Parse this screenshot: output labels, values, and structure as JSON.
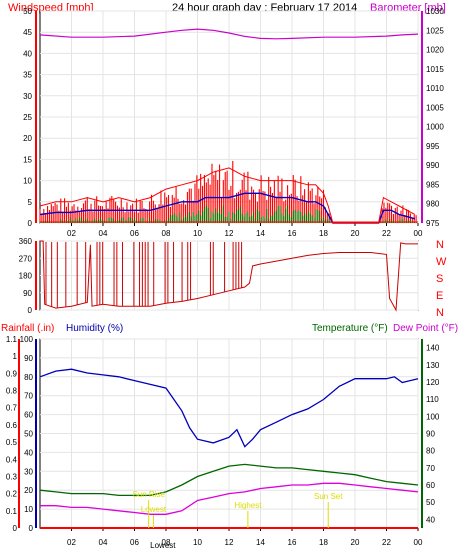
{
  "header": {
    "wind_label": "Windspeed [mph]",
    "title": "24 hour graph day : February 17 2014",
    "baro_label": "Barometer [mb]"
  },
  "labels": {
    "rain": "Rainfall (.in)",
    "humidity": "Humidity (%)",
    "temperature": "Temperature (°F)",
    "dew": "Dew Point (°F)",
    "compass": [
      "N",
      "W",
      "S",
      "E",
      "N"
    ],
    "annotations": [
      "Sun Rise",
      "Lowest",
      "Highest",
      "Sun Set",
      "Lowest"
    ]
  },
  "colors": {
    "wind": "#ff0000",
    "gust_fill": "#ff0000",
    "wind_avg": "#0000cc",
    "wind_min": "#008000",
    "barometer": "#cc00cc",
    "direction": "#cc0000",
    "humidity": "#0000bb",
    "temperature": "#006600",
    "dew": "#dd00dd",
    "rain": "#ff0000",
    "annotation": "#dddd00",
    "axis_left": "#ff0000",
    "axis_right": "#cc00cc",
    "axis_hum": "#0000aa",
    "axis_temp": "#006600"
  },
  "chart_data": [
    {
      "type": "area",
      "panel": "wind-barometer",
      "x_ticks": [
        "02",
        "04",
        "06",
        "08",
        "10",
        "12",
        "14",
        "16",
        "18",
        "20",
        "22",
        "00"
      ],
      "y_left_range": [
        0,
        50
      ],
      "y_left_ticks": [
        0,
        5,
        10,
        15,
        20,
        25,
        30,
        35,
        40,
        45,
        50
      ],
      "y_right_range": [
        975,
        1030
      ],
      "y_right_ticks": [
        975,
        980,
        985,
        990,
        995,
        1000,
        1005,
        1010,
        1015,
        1020,
        1025,
        1030
      ],
      "series": [
        {
          "name": "Windspeed [mph]",
          "x": [
            0,
            1,
            2,
            3,
            4,
            5,
            6,
            7,
            8,
            9,
            10,
            10.5,
            11,
            12,
            13,
            14,
            15,
            16,
            17,
            17.5,
            18,
            18.3,
            18.6,
            21.5,
            21.8,
            22.3,
            22.8,
            23.3,
            23.8
          ],
          "gust": [
            4,
            5,
            5,
            6,
            5,
            6,
            5,
            6,
            8,
            9,
            10,
            11,
            12,
            13,
            11,
            10,
            10,
            10,
            9,
            9,
            7,
            4,
            0,
            0,
            6,
            5,
            4,
            3,
            2
          ],
          "avg": [
            2,
            2.5,
            2.5,
            3,
            3,
            3,
            3,
            3,
            4,
            5,
            5,
            6,
            6,
            6,
            7,
            7,
            6,
            6,
            5,
            5,
            4,
            2,
            0,
            0,
            3,
            3,
            2,
            1.5,
            1
          ],
          "min": [
            0.5,
            0.5,
            1,
            1,
            1,
            1,
            1,
            1,
            1.5,
            2,
            2,
            3,
            3,
            3,
            3,
            3,
            3,
            3,
            2.5,
            2.5,
            2,
            1,
            0,
            0,
            1,
            1,
            1,
            0.5,
            0.5
          ]
        },
        {
          "name": "Barometer [mb]",
          "x": [
            0,
            2,
            4,
            6,
            8,
            9,
            10,
            11,
            12,
            13,
            14,
            15,
            16,
            18,
            20,
            22,
            23,
            24
          ],
          "values": [
            1023.8,
            1023.2,
            1023.2,
            1023.5,
            1024.5,
            1025.0,
            1025.3,
            1025.0,
            1024.3,
            1023.4,
            1022.9,
            1022.8,
            1022.9,
            1023.2,
            1023.2,
            1023.5,
            1023.8,
            1024.0
          ]
        }
      ]
    },
    {
      "type": "line",
      "panel": "wind-direction",
      "x_ticks": [
        "02",
        "04",
        "06",
        "08",
        "10",
        "12",
        "14",
        "16",
        "18",
        "20",
        "22",
        "00"
      ],
      "y_range": [
        0,
        360
      ],
      "y_ticks": [
        0,
        90,
        180,
        270,
        360
      ],
      "series": [
        {
          "name": "Direction",
          "x": [
            0,
            0.2,
            0.3,
            1,
            2,
            3,
            3.2,
            3.3,
            4,
            5,
            6,
            7,
            8,
            9,
            10,
            11,
            12,
            13,
            13.3,
            13.5,
            14,
            15,
            16,
            17,
            18,
            19,
            20,
            21,
            22,
            22.2,
            22.6,
            22.9,
            23.2,
            24
          ],
          "values": [
            360,
            360,
            30,
            10,
            20,
            40,
            340,
            20,
            30,
            20,
            20,
            20,
            35,
            45,
            60,
            80,
            100,
            120,
            140,
            230,
            240,
            255,
            270,
            285,
            295,
            300,
            300,
            300,
            290,
            60,
            0,
            350,
            345,
            345
          ]
        }
      ]
    },
    {
      "type": "line",
      "panel": "temp-humidity-rain",
      "x_ticks": [
        "02",
        "04",
        "06",
        "08",
        "10",
        "12",
        "14",
        "16",
        "18",
        "20",
        "22",
        "00"
      ],
      "y_rain_range": [
        0,
        1.1
      ],
      "y_rain_ticks": [
        0,
        0.1,
        0.2,
        0.3,
        0.4,
        0.5,
        0.6,
        0.7,
        0.8,
        0.9,
        1,
        1.1
      ],
      "y_humidity_range": [
        0,
        100
      ],
      "y_humidity_ticks": [
        0,
        10,
        20,
        30,
        40,
        50,
        60,
        70,
        80,
        90,
        100
      ],
      "y_temp_range": [
        35,
        145
      ],
      "y_temp_ticks": [
        40,
        50,
        60,
        70,
        80,
        90,
        100,
        110,
        120,
        130,
        140
      ],
      "series": [
        {
          "name": "Humidity (%)",
          "x": [
            0,
            1,
            2,
            3,
            4,
            5,
            6,
            7,
            8,
            9,
            9.5,
            10,
            11,
            12,
            12.5,
            13,
            13.5,
            14,
            15,
            16,
            17,
            18,
            19,
            20,
            21,
            22,
            22.5,
            23,
            24
          ],
          "values": [
            80,
            83,
            84,
            82,
            81,
            80,
            78,
            76,
            74,
            62,
            53,
            47,
            45,
            48,
            52,
            43,
            47,
            52,
            56,
            60,
            63,
            68,
            75,
            79,
            79,
            79,
            80,
            77,
            79
          ]
        },
        {
          "name": "Temperature (°F)",
          "x": [
            0,
            1,
            2,
            3,
            4,
            5,
            6,
            7,
            8,
            9,
            10,
            11,
            12,
            13,
            14,
            15,
            16,
            17,
            18,
            19,
            20,
            21,
            22,
            23,
            24
          ],
          "values": [
            57,
            56,
            55,
            55,
            55,
            54,
            54,
            54,
            56,
            60,
            65,
            68,
            71,
            72,
            71,
            70,
            70,
            69,
            68,
            67,
            66,
            64,
            62,
            61,
            60
          ]
        },
        {
          "name": "Dew Point (°F)",
          "x": [
            0,
            1,
            2,
            3,
            4,
            5,
            6,
            7,
            8,
            9,
            10,
            11,
            12,
            13,
            14,
            15,
            16,
            17,
            18,
            19,
            20,
            21,
            22,
            23,
            24
          ],
          "values": [
            48,
            48,
            47,
            47,
            46,
            45,
            44,
            43,
            43,
            45,
            51,
            53,
            55,
            56,
            58,
            59,
            60,
            60,
            61,
            61,
            60,
            59,
            58,
            57,
            56
          ]
        },
        {
          "name": "Rainfall (.in)",
          "x": [
            0,
            24
          ],
          "values": [
            0,
            0
          ]
        }
      ],
      "annotations": [
        {
          "text": "Sun Rise",
          "x": 6.9
        },
        {
          "text": "Lowest",
          "x": 7.2
        },
        {
          "text": "Highest",
          "x": 13.2
        },
        {
          "text": "Sun Set",
          "x": 18.3
        },
        {
          "text": "Lowest",
          "x": 7.8
        }
      ]
    }
  ]
}
